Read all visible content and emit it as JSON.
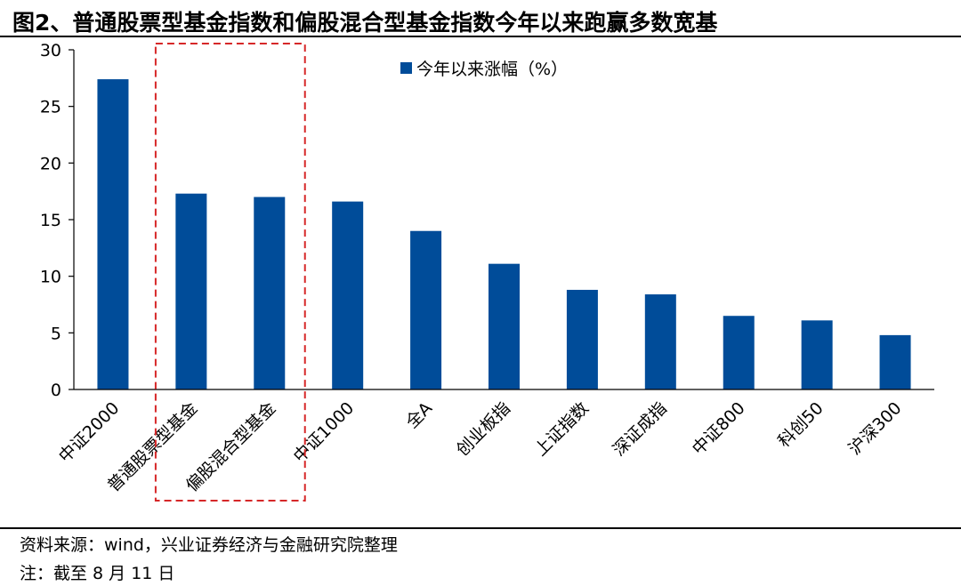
{
  "title": "图2、普通股票型基金指数和偏股混合型基金指数今年以来跑赢多数宽基",
  "source": "资料来源：wind，兴业证券经济与金融研究院整理",
  "note": "注：截至 8 月 11 日",
  "colors": {
    "bar": "#004C99",
    "highlight_box": "#D62728"
  },
  "chart_data": {
    "type": "bar",
    "categories": [
      "中证2000",
      "普通股票型基金",
      "偏股混合型基金",
      "中证1000",
      "全A",
      "创业板指",
      "上证指数",
      "深证成指",
      "中证800",
      "科创50",
      "沪深300"
    ],
    "series": [
      {
        "name": "今年以来涨幅（%）",
        "values": [
          27.4,
          17.3,
          17.0,
          16.6,
          14.0,
          11.1,
          8.8,
          8.4,
          6.5,
          6.1,
          4.8
        ]
      }
    ],
    "ylim": [
      0,
      30
    ],
    "yticks": [
      "0",
      "5",
      "10",
      "15",
      "20",
      "25",
      "30"
    ],
    "legend": "top-center",
    "grid": false,
    "highlighted_categories": [
      "普通股票型基金",
      "偏股混合型基金"
    ]
  }
}
